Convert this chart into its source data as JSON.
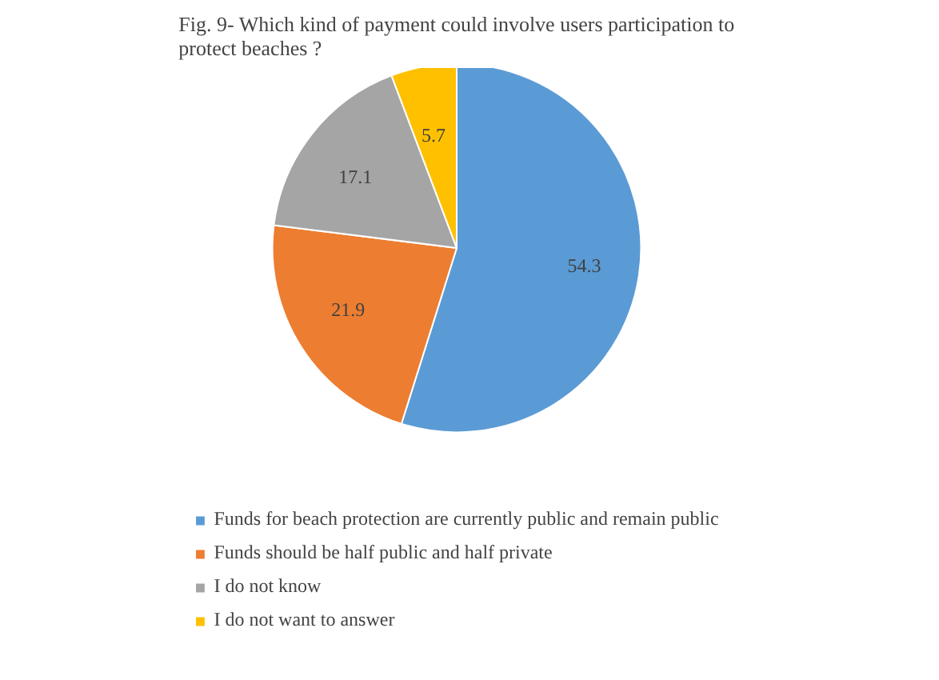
{
  "chart_data": {
    "type": "pie",
    "title": "Fig. 9- Which kind of payment could involve users participation to protect beaches ?",
    "categories": [
      "Funds for beach protection are currently public and remain public",
      "Funds should be half public and half private",
      "I do not know",
      "I do not want to answer"
    ],
    "values": [
      54.3,
      21.9,
      17.1,
      5.7
    ],
    "colors": [
      "#5b9bd5",
      "#ed7d31",
      "#a5a5a5",
      "#ffc000"
    ],
    "data_labels": true,
    "legend": "bottom"
  }
}
